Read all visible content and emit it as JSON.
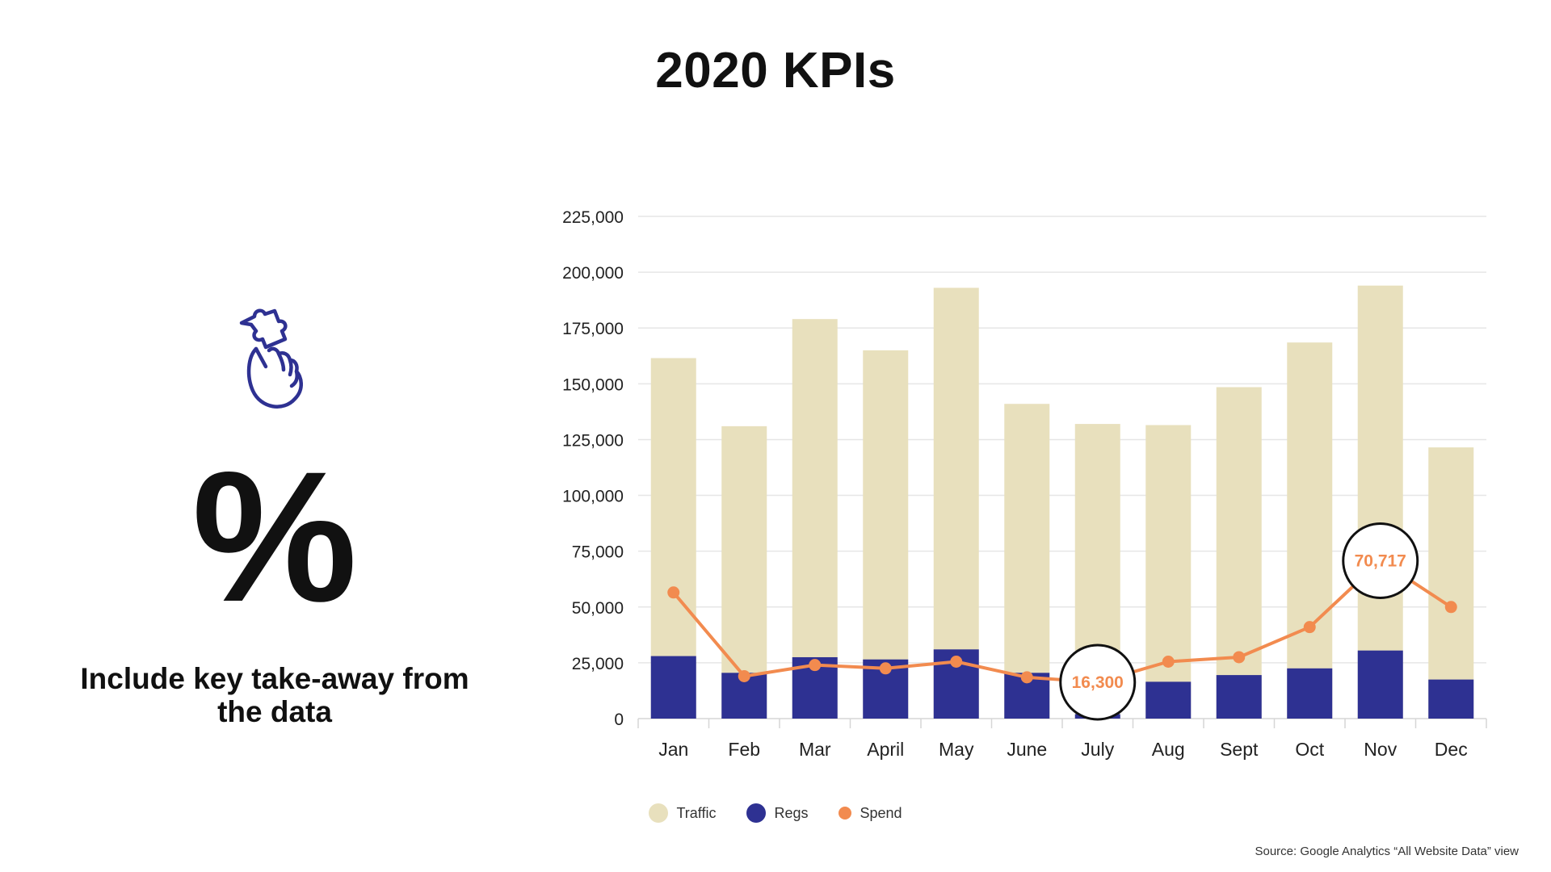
{
  "header": {
    "title": "2020 KPIs"
  },
  "left_panel": {
    "icon": "puzzle-hand-icon",
    "stat": "%",
    "takeaway": "Include key take-away from the data",
    "icon_color": "#2e3192"
  },
  "colors": {
    "traffic": "#e8e0bd",
    "regs": "#2e3192",
    "spend": "#f28b4f"
  },
  "chart_data": {
    "type": "bar",
    "categories": [
      "Jan",
      "Feb",
      "Mar",
      "April",
      "May",
      "June",
      "July",
      "Aug",
      "Sept",
      "Oct",
      "Nov",
      "Dec"
    ],
    "series": [
      {
        "name": "Traffic",
        "type": "bar",
        "values": [
          161500,
          131000,
          179000,
          165000,
          193000,
          141000,
          132000,
          131500,
          148500,
          168500,
          194000,
          121500
        ]
      },
      {
        "name": "Regs",
        "type": "bar",
        "values": [
          28000,
          20500,
          27500,
          26500,
          31000,
          20500,
          2000,
          16500,
          19500,
          22500,
          30500,
          17500
        ]
      },
      {
        "name": "Spend",
        "type": "line",
        "values": [
          56500,
          19000,
          24000,
          22500,
          25500,
          18500,
          16300,
          25500,
          27500,
          41000,
          70717,
          50000
        ]
      }
    ],
    "yticks": [
      "0",
      "25,000",
      "50,000",
      "75,000",
      "100,000",
      "125,000",
      "150,000",
      "175,000",
      "200,000",
      "225,000"
    ],
    "ylim": [
      0,
      225000
    ],
    "callouts": [
      {
        "series": "Spend",
        "category": "July",
        "label": "16,300"
      },
      {
        "series": "Spend",
        "category": "Nov",
        "label": "70,717"
      }
    ],
    "legend": [
      "Traffic",
      "Regs",
      "Spend"
    ],
    "legend_position": "bottom-center",
    "grid": true
  },
  "source": "Source: Google Analytics “All Website Data” view"
}
